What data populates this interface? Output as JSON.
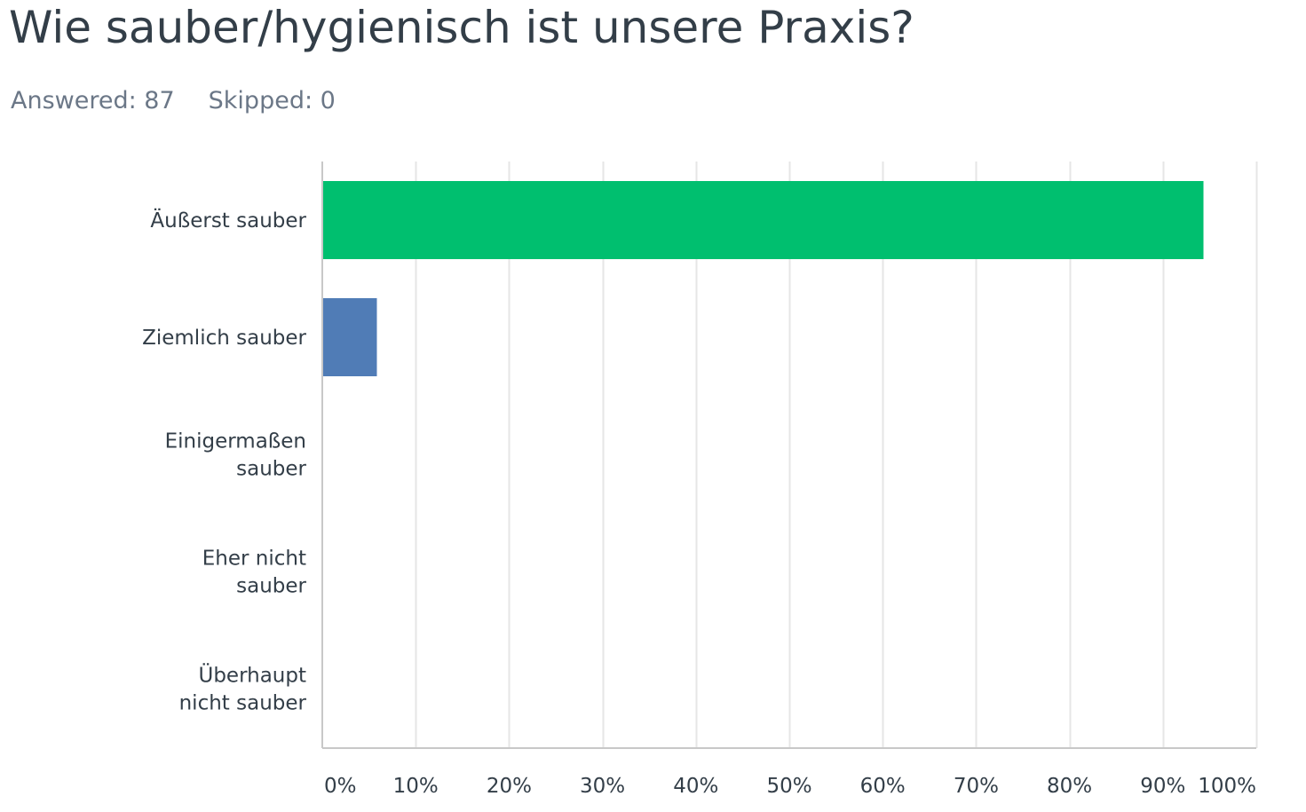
{
  "question": {
    "title": "Wie sauber/hygienisch ist unsere Praxis?"
  },
  "stats": {
    "answered_label": "Answered:",
    "answered_count": "87",
    "skipped_label": "Skipped:",
    "skipped_count": "0"
  },
  "colors": {
    "bar_top": "#00bf6f",
    "bar_default": "#507cb6",
    "grid": "#e6e6e6",
    "axis": "#c8c8c8"
  },
  "chart_data": {
    "type": "bar",
    "orientation": "horizontal",
    "categories": [
      [
        "Äußerst sauber"
      ],
      [
        "Ziemlich sauber"
      ],
      [
        "Einigermaßen",
        "sauber"
      ],
      [
        "Eher nicht",
        "sauber"
      ],
      [
        "Überhaupt",
        "nicht sauber"
      ]
    ],
    "values": [
      94.25,
      5.75,
      0,
      0,
      0
    ],
    "x_ticks": [
      "0%",
      "10%",
      "20%",
      "30%",
      "40%",
      "50%",
      "60%",
      "70%",
      "80%",
      "90%",
      "100%"
    ],
    "xlim": [
      0,
      100
    ],
    "grid": true
  }
}
